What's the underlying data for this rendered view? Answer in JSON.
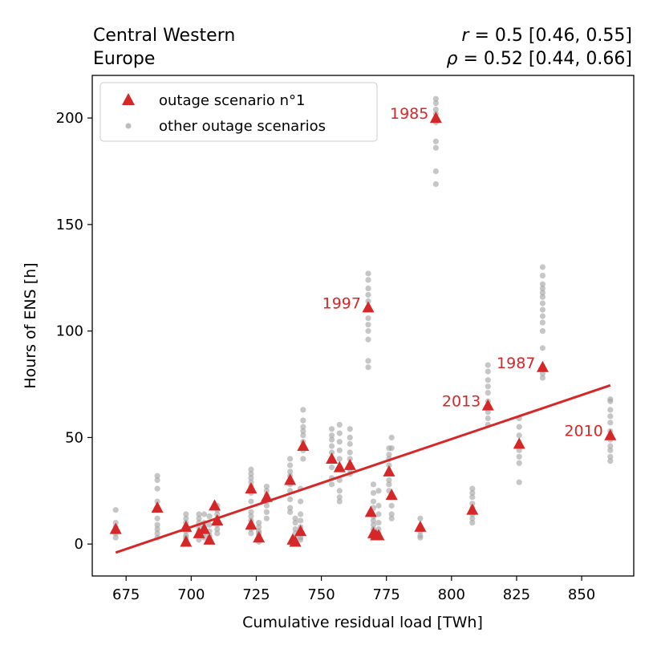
{
  "chart_data": {
    "type": "scatter",
    "title_left_line1": "Central Western",
    "title_left_line2": "Europe",
    "stat_r_symbol": "r",
    "stat_r_value": " = 0.5 [0.46, 0.55]",
    "stat_rho_symbol": "ρ",
    "stat_rho_value": " = 0.52 [0.44, 0.66]",
    "xlabel": "Cumulative residual load [TWh]",
    "ylabel": "Hours of ENS [h]",
    "xlim": [
      662,
      870
    ],
    "ylim": [
      -15,
      220
    ],
    "xticks": [
      675,
      700,
      725,
      750,
      775,
      800,
      825,
      850
    ],
    "yticks": [
      0,
      50,
      100,
      150,
      200
    ],
    "legend": {
      "position": "upper-left",
      "entries": [
        {
          "label": "outage scenario n°1",
          "marker": "triangle",
          "color": "#d62728"
        },
        {
          "label": "other outage scenarios",
          "marker": "circle",
          "color": "#a0a0a0"
        }
      ]
    },
    "colors": {
      "main": "#d62728",
      "other": "#a0a0a0"
    },
    "regression_line": {
      "x": [
        671,
        861
      ],
      "y": [
        -4,
        74.5
      ]
    },
    "main_scenario": [
      {
        "x": 671,
        "y": 7
      },
      {
        "x": 687,
        "y": 17
      },
      {
        "x": 698,
        "y": 8
      },
      {
        "x": 698,
        "y": 1
      },
      {
        "x": 703,
        "y": 5
      },
      {
        "x": 705,
        "y": 7
      },
      {
        "x": 707,
        "y": 2
      },
      {
        "x": 709,
        "y": 18
      },
      {
        "x": 710,
        "y": 11
      },
      {
        "x": 723,
        "y": 26
      },
      {
        "x": 723,
        "y": 9
      },
      {
        "x": 726,
        "y": 3
      },
      {
        "x": 729,
        "y": 22
      },
      {
        "x": 738,
        "y": 30
      },
      {
        "x": 739,
        "y": 2
      },
      {
        "x": 740,
        "y": 1
      },
      {
        "x": 742,
        "y": 6
      },
      {
        "x": 743,
        "y": 46
      },
      {
        "x": 754,
        "y": 40
      },
      {
        "x": 757,
        "y": 36
      },
      {
        "x": 761,
        "y": 37
      },
      {
        "x": 768,
        "y": 111
      },
      {
        "x": 769,
        "y": 15
      },
      {
        "x": 770,
        "y": 5
      },
      {
        "x": 771,
        "y": 4
      },
      {
        "x": 772,
        "y": 4
      },
      {
        "x": 776,
        "y": 34
      },
      {
        "x": 777,
        "y": 23
      },
      {
        "x": 788,
        "y": 8
      },
      {
        "x": 794,
        "y": 200
      },
      {
        "x": 808,
        "y": 16
      },
      {
        "x": 814,
        "y": 65
      },
      {
        "x": 826,
        "y": 47
      },
      {
        "x": 835,
        "y": 83
      },
      {
        "x": 861,
        "y": 51
      }
    ],
    "other_scenarios": [
      {
        "x": 671,
        "values": [
          16,
          10,
          8,
          6,
          5,
          3
        ]
      },
      {
        "x": 687,
        "values": [
          32,
          30,
          26,
          20,
          12,
          9,
          7,
          5,
          3
        ]
      },
      {
        "x": 698,
        "values": [
          14,
          12,
          10,
          6,
          4,
          3,
          2
        ]
      },
      {
        "x": 703,
        "values": [
          14,
          12,
          10,
          8,
          6,
          4,
          2
        ]
      },
      {
        "x": 705,
        "values": [
          14,
          10,
          8,
          5,
          3
        ]
      },
      {
        "x": 707,
        "values": [
          13,
          9,
          6,
          4,
          3,
          1
        ]
      },
      {
        "x": 710,
        "values": [
          18,
          16,
          14,
          12,
          9,
          7,
          5
        ]
      },
      {
        "x": 723,
        "values": [
          35,
          33,
          31,
          29,
          27,
          24,
          20,
          15,
          13,
          11,
          7,
          5
        ]
      },
      {
        "x": 726,
        "values": [
          10,
          8,
          6,
          5,
          4,
          2,
          1
        ]
      },
      {
        "x": 729,
        "values": [
          27,
          25,
          23,
          20,
          18,
          15,
          12
        ]
      },
      {
        "x": 738,
        "values": [
          40,
          37,
          34,
          32,
          28,
          25,
          21,
          17,
          15
        ]
      },
      {
        "x": 740,
        "values": [
          12,
          10,
          7,
          5,
          3,
          1
        ]
      },
      {
        "x": 742,
        "values": [
          26,
          20,
          14,
          11,
          8,
          5,
          3,
          2
        ]
      },
      {
        "x": 743,
        "values": [
          63,
          58,
          55,
          53,
          51,
          48,
          44,
          40
        ]
      },
      {
        "x": 754,
        "values": [
          54,
          51,
          49,
          46,
          43,
          39,
          36,
          31,
          28
        ]
      },
      {
        "x": 757,
        "values": [
          56,
          52,
          48,
          44,
          40,
          36,
          30,
          25,
          22,
          20
        ]
      },
      {
        "x": 761,
        "values": [
          54,
          50,
          47,
          43,
          40,
          35,
          33
        ]
      },
      {
        "x": 768,
        "values": [
          127,
          124,
          120,
          117,
          114,
          110,
          106,
          103,
          100,
          96,
          86,
          83
        ]
      },
      {
        "x": 770,
        "values": [
          28,
          24,
          20,
          17,
          13,
          11,
          9,
          7,
          5,
          3
        ]
      },
      {
        "x": 772,
        "values": [
          25,
          18,
          14,
          10,
          7,
          5,
          3
        ]
      },
      {
        "x": 776,
        "values": [
          45,
          42,
          40,
          37,
          33,
          30,
          28,
          25
        ]
      },
      {
        "x": 777,
        "values": [
          50,
          45,
          22,
          18,
          14,
          12
        ]
      },
      {
        "x": 788,
        "values": [
          12,
          8,
          6,
          4,
          3
        ]
      },
      {
        "x": 794,
        "values": [
          209,
          207,
          204,
          202,
          198,
          189,
          186,
          175,
          169
        ]
      },
      {
        "x": 808,
        "values": [
          26,
          24,
          22,
          19,
          17,
          14,
          12,
          10
        ]
      },
      {
        "x": 814,
        "values": [
          84,
          81,
          77,
          74,
          71,
          67,
          62,
          59,
          56
        ]
      },
      {
        "x": 826,
        "values": [
          59,
          55,
          51,
          47,
          44,
          41,
          38,
          29
        ]
      },
      {
        "x": 835,
        "values": [
          130,
          126,
          122,
          120,
          118,
          116,
          113,
          110,
          107,
          104,
          100,
          92,
          80,
          78
        ]
      },
      {
        "x": 861,
        "values": [
          68,
          67,
          63,
          60,
          57,
          53,
          49,
          46,
          44,
          41,
          39
        ]
      }
    ],
    "annotations": [
      {
        "label": "1985",
        "x": 794,
        "y": 200
      },
      {
        "label": "1997",
        "x": 768,
        "y": 111
      },
      {
        "label": "1987",
        "x": 835,
        "y": 83
      },
      {
        "label": "2013",
        "x": 814,
        "y": 65
      },
      {
        "label": "2010",
        "x": 861,
        "y": 51
      }
    ]
  }
}
